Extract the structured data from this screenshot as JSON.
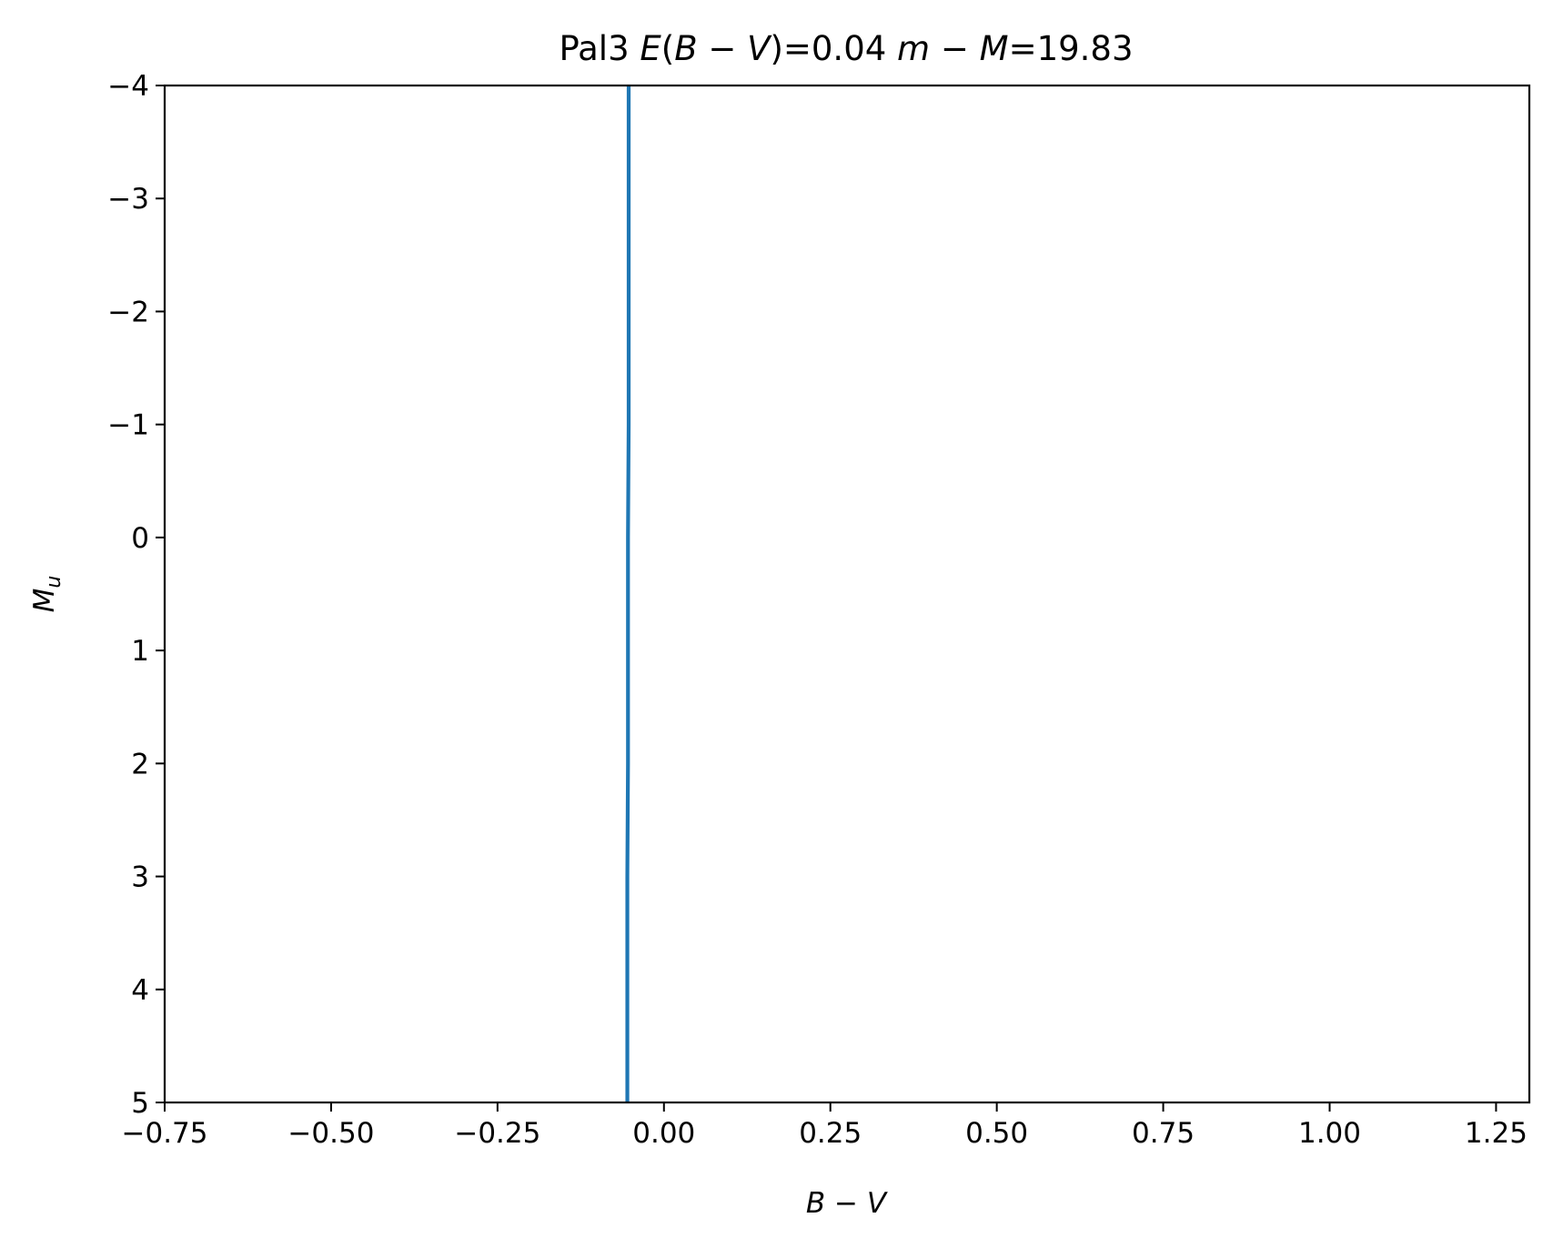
{
  "chart_data": {
    "type": "line",
    "title": {
      "prefix": "Pal3 ",
      "ebv_symbol": "E",
      "ebv_open": "(",
      "ebv_b": "B",
      "ebv_minus": " − ",
      "ebv_v": "V",
      "ebv_close": ")",
      "ebv_value": "=0.04 ",
      "dm_m": "m",
      "dm_minus": " − ",
      "dm_M": "M",
      "dm_value": "=19.83"
    },
    "xlabel": {
      "b": "B",
      "minus": " − ",
      "v": "V"
    },
    "ylabel": {
      "m": "M",
      "sub": "u"
    },
    "xlim": [
      -0.75,
      1.3
    ],
    "ylim": [
      5,
      -4
    ],
    "y_inverted": true,
    "xticks": [
      -0.75,
      -0.5,
      -0.25,
      0.0,
      0.25,
      0.5,
      0.75,
      1.0,
      1.25
    ],
    "xtick_labels": [
      "−0.75",
      "−0.50",
      "−0.25",
      "0.00",
      "0.25",
      "0.50",
      "0.75",
      "1.00",
      "1.25"
    ],
    "yticks": [
      -4,
      -3,
      -2,
      -1,
      0,
      1,
      2,
      3,
      4,
      5
    ],
    "ytick_labels": [
      "−4",
      "−3",
      "−2",
      "−1",
      "0",
      "1",
      "2",
      "3",
      "4",
      "5"
    ],
    "grid": false,
    "legend": "none",
    "series": [
      {
        "color": "#1f77b4",
        "x": [
          -0.053,
          -0.053,
          -0.053,
          -0.053,
          -0.054,
          -0.054,
          -0.054,
          -0.055,
          -0.055,
          -0.055
        ],
        "y": [
          -4,
          -3,
          -2,
          -1,
          0,
          1,
          2,
          3,
          4,
          5
        ]
      }
    ]
  }
}
